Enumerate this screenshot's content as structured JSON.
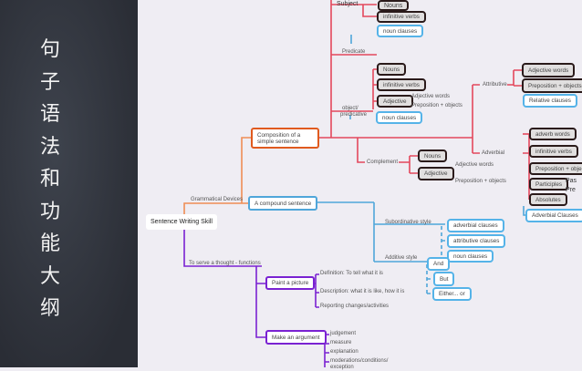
{
  "side_title": [
    "句",
    "子",
    "语",
    "法",
    "和",
    "功",
    "能",
    "大",
    "纲"
  ],
  "root": "Sentence Writing Skill",
  "branches": {
    "grammatical": "Grammatical Devices",
    "functions": "To serve a thought - functions"
  },
  "simple": {
    "title": "Composition of a simple sentence",
    "subject": "Subject",
    "predicate": "Predicate",
    "object": "object/",
    "predicative": "predicative",
    "complement": "Complement",
    "attributive": "Attributive",
    "adverbial": "Adverbial",
    "subject_items": [
      "Nouns",
      "infinitive verbs",
      "noun clauses"
    ],
    "object_items": [
      "Nouns",
      "infinitive verbs",
      "Adjective",
      "noun clauses"
    ],
    "object_adj": [
      "Adjective words",
      "Preposition + objects"
    ],
    "complement_items": [
      "Nouns",
      "Adjective"
    ],
    "complement_adj": [
      "Adjective words",
      "Preposition + objects"
    ],
    "attributive_items": [
      "Adjective words",
      "Preposition + objects",
      "Relative clauses"
    ],
    "adverbial_items": [
      "adverb words",
      "infinitive verbs",
      "Preposition + objects",
      "Participles",
      "Absolutes",
      "Adverbial Clauses"
    ],
    "participles_sub": [
      "Pas",
      "Pre"
    ]
  },
  "compound": {
    "title": "A compound sentence",
    "subordinative": "Subordinative style",
    "additive": "Additive style",
    "subordinative_items": [
      "adverbial clauses",
      "attributive clauses",
      "noun clauses"
    ],
    "additive_items": [
      "And",
      "But",
      "Either... or"
    ]
  },
  "functions": {
    "paint": "Paint a picture",
    "paint_items": [
      "Definition: To tell what it is",
      "Description: what it is like, how it is",
      "Reporting changes/activities"
    ],
    "argument": "Make an argument",
    "argument_items": [
      "judgement",
      "measure",
      "explanation",
      "moderations/conditions/",
      "exception"
    ]
  },
  "colors": {
    "red": "#e4485c",
    "orange": "#ef8d55",
    "blue": "#4fa6da",
    "purple": "#7a22d2"
  }
}
